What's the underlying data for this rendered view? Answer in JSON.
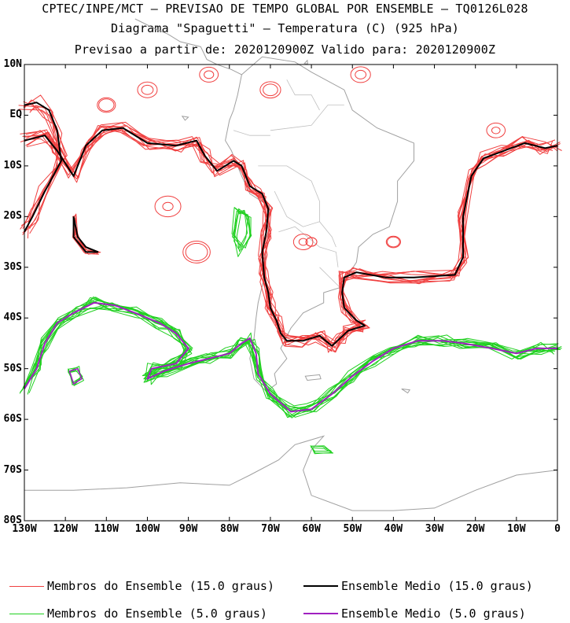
{
  "header": {
    "line1": "CPTEC/INPE/MCT – PREVISAO DE TEMPO GLOBAL POR ENSEMBLE – TQ0126L028",
    "line2": "Diagrama \"Spaguetti\" – Temperatura (C) (925 hPa)",
    "line3": "Previsao a partir de: 2020120900Z  Valido para: 2020120900Z"
  },
  "axes": {
    "lat_labels": [
      "10N",
      "EQ",
      "10S",
      "20S",
      "30S",
      "40S",
      "50S",
      "60S",
      "70S",
      "80S"
    ],
    "lat_values": [
      10,
      0,
      -10,
      -20,
      -30,
      -40,
      -50,
      -60,
      -70,
      -80
    ],
    "lon_labels": [
      "130W",
      "120W",
      "110W",
      "100W",
      "90W",
      "80W",
      "70W",
      "60W",
      "50W",
      "40W",
      "30W",
      "20W",
      "10W",
      "0"
    ],
    "lon_values": [
      -130,
      -120,
      -110,
      -100,
      -90,
      -80,
      -70,
      -60,
      -50,
      -40,
      -30,
      -20,
      -10,
      0
    ],
    "lon_range": [
      -130,
      0
    ],
    "lat_range": [
      -80,
      10
    ]
  },
  "legend": {
    "members_15": "Membros do Ensemble (15.0 graus)",
    "mean_15": "Ensemble Medio (15.0 graus)",
    "members_5": "Membros do Ensemble (5.0 graus)",
    "mean_5": "Ensemble Medio (5.0 graus)"
  },
  "colors": {
    "members_15": "#f04040",
    "mean_15": "#000000",
    "members_5": "#20d020",
    "mean_5": "#a020c0",
    "coast": "#a0a0a0"
  }
}
